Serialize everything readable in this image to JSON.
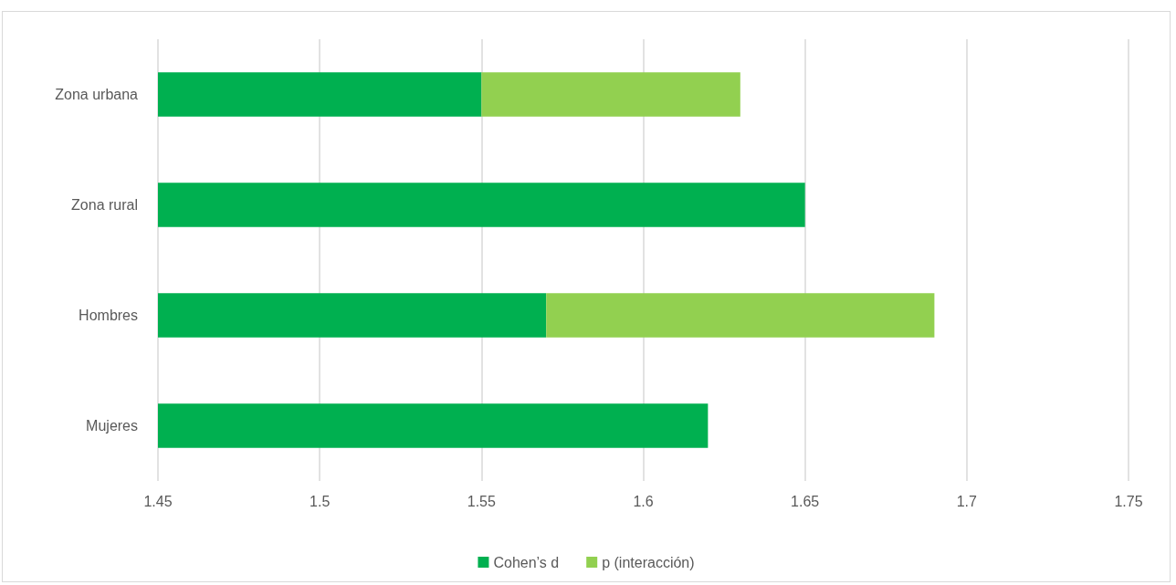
{
  "chart_data": {
    "type": "bar",
    "orientation": "horizontal",
    "stacked": true,
    "categories": [
      "Zona urbana",
      "Zona rural",
      "Hombres",
      "Mujeres"
    ],
    "series": [
      {
        "name": "Cohen’s d",
        "color": "#00b050",
        "values": [
          1.55,
          1.65,
          1.57,
          1.62
        ]
      },
      {
        "name": "p (interacción)",
        "color": "#92d050",
        "values": [
          0.08,
          null,
          0.12,
          null
        ],
        "base": [
          1.55,
          null,
          1.57,
          null
        ]
      }
    ],
    "xlim": [
      1.45,
      1.75
    ],
    "xticks": [
      1.45,
      1.5,
      1.55,
      1.6,
      1.65,
      1.7,
      1.75
    ],
    "grid": "x",
    "legend": "bottom"
  }
}
